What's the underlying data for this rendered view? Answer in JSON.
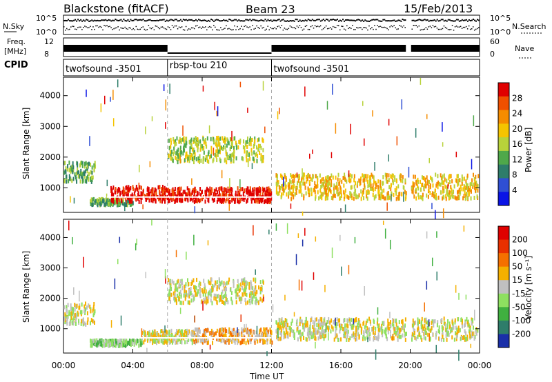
{
  "header": {
    "station": "Blackstone (fitACF)",
    "beam": "Beam 23",
    "date": "15/Feb/2013"
  },
  "strip": {
    "noise_label": "N.Sky",
    "noise_right_label": "N.Search",
    "noise_ticks": [
      "10^5",
      "10^0"
    ],
    "noise_right_ticks": [
      "10^5",
      "10^0"
    ],
    "freq_label_line1": "Freq.",
    "freq_label_line2": "[MHz]",
    "freq_ticks": [
      "12",
      "8"
    ],
    "nave_label": "Nave",
    "nave_ticks": [
      "60",
      "0"
    ],
    "cpid_label": "CPID",
    "cpid_segments": [
      {
        "name": "twofsound -3501",
        "start": 0,
        "end": 6
      },
      {
        "name": "rbsp-tou 210",
        "start": 6,
        "end": 12
      },
      {
        "name": "twofsound -3501",
        "start": 12,
        "end": 24
      }
    ]
  },
  "chart_data": [
    {
      "type": "heatmap",
      "panel": "power",
      "ylabel": "Slant Range [km]",
      "xlabel": "",
      "ylim": [
        200,
        4600
      ],
      "yticks": [
        "4000",
        "3000",
        "2000",
        "1000"
      ],
      "x_range_hours": [
        0,
        24
      ],
      "colorbar_label": "Power [dB]",
      "colorbar_ticks": [
        "28",
        "24",
        "20",
        "16",
        "12",
        "8",
        "4"
      ],
      "colors": [
        "#0a14e6",
        "#2f4fd4",
        "#2e7d6a",
        "#4fa84a",
        "#b8d23a",
        "#f5c400",
        "#f58c00",
        "#f05000",
        "#e00000"
      ],
      "echo_bands": [
        {
          "t0": 0.0,
          "t1": 1.8,
          "r0": 1250,
          "r1": 1900,
          "level": 3
        },
        {
          "t0": 1.5,
          "t1": 4.0,
          "r0": 500,
          "r1": 700,
          "level": 3
        },
        {
          "t0": 2.7,
          "t1": 6.0,
          "r0": 600,
          "r1": 1100,
          "level": 8
        },
        {
          "t0": 6.0,
          "t1": 12.0,
          "r0": 600,
          "r1": 1050,
          "level": 8
        },
        {
          "t0": 6.0,
          "t1": 11.5,
          "r0": 1900,
          "r1": 2700,
          "level": 4
        },
        {
          "t0": 12.2,
          "t1": 23.9,
          "r0": 700,
          "r1": 1500,
          "level": 5
        }
      ],
      "data_gaps_hours": [
        [
          19.75,
          20.05
        ]
      ]
    },
    {
      "type": "heatmap",
      "panel": "velocity",
      "ylabel": "Slant Range [km]",
      "xlabel": "Time UT",
      "ylim": [
        200,
        4600
      ],
      "yticks": [
        "4000",
        "3000",
        "2000",
        "1000"
      ],
      "xticks": [
        "00:00",
        "04:00",
        "08:00",
        "12:00",
        "16:00",
        "20:00",
        "00:00"
      ],
      "x_range_hours": [
        0,
        24
      ],
      "colorbar_label": "Velocity [m s⁻¹]",
      "colorbar_ticks": [
        "200",
        "100",
        "50",
        "15",
        "-15",
        "-50",
        "-100",
        "-200"
      ],
      "colors": [
        "#1a2fa8",
        "#2e7d6a",
        "#40b040",
        "#8ee060",
        "#c0c0c0",
        "#f5b000",
        "#f57000",
        "#e83000",
        "#e00000"
      ],
      "echo_bands": [
        {
          "t0": 0.0,
          "t1": 1.8,
          "r0": 1200,
          "r1": 1900,
          "level": 4
        },
        {
          "t0": 1.5,
          "t1": 4.5,
          "r0": 500,
          "r1": 700,
          "level": 3
        },
        {
          "t0": 4.5,
          "t1": 7.5,
          "r0": 600,
          "r1": 1000,
          "level": 4
        },
        {
          "t0": 7.5,
          "t1": 12.0,
          "r0": 600,
          "r1": 1050,
          "level": 5
        },
        {
          "t0": 6.0,
          "t1": 11.5,
          "r0": 1900,
          "r1": 2700,
          "level": 4
        },
        {
          "t0": 12.2,
          "t1": 23.9,
          "r0": 700,
          "r1": 1400,
          "level": 4
        }
      ],
      "data_gaps_hours": [
        [
          19.75,
          20.05
        ]
      ]
    }
  ]
}
